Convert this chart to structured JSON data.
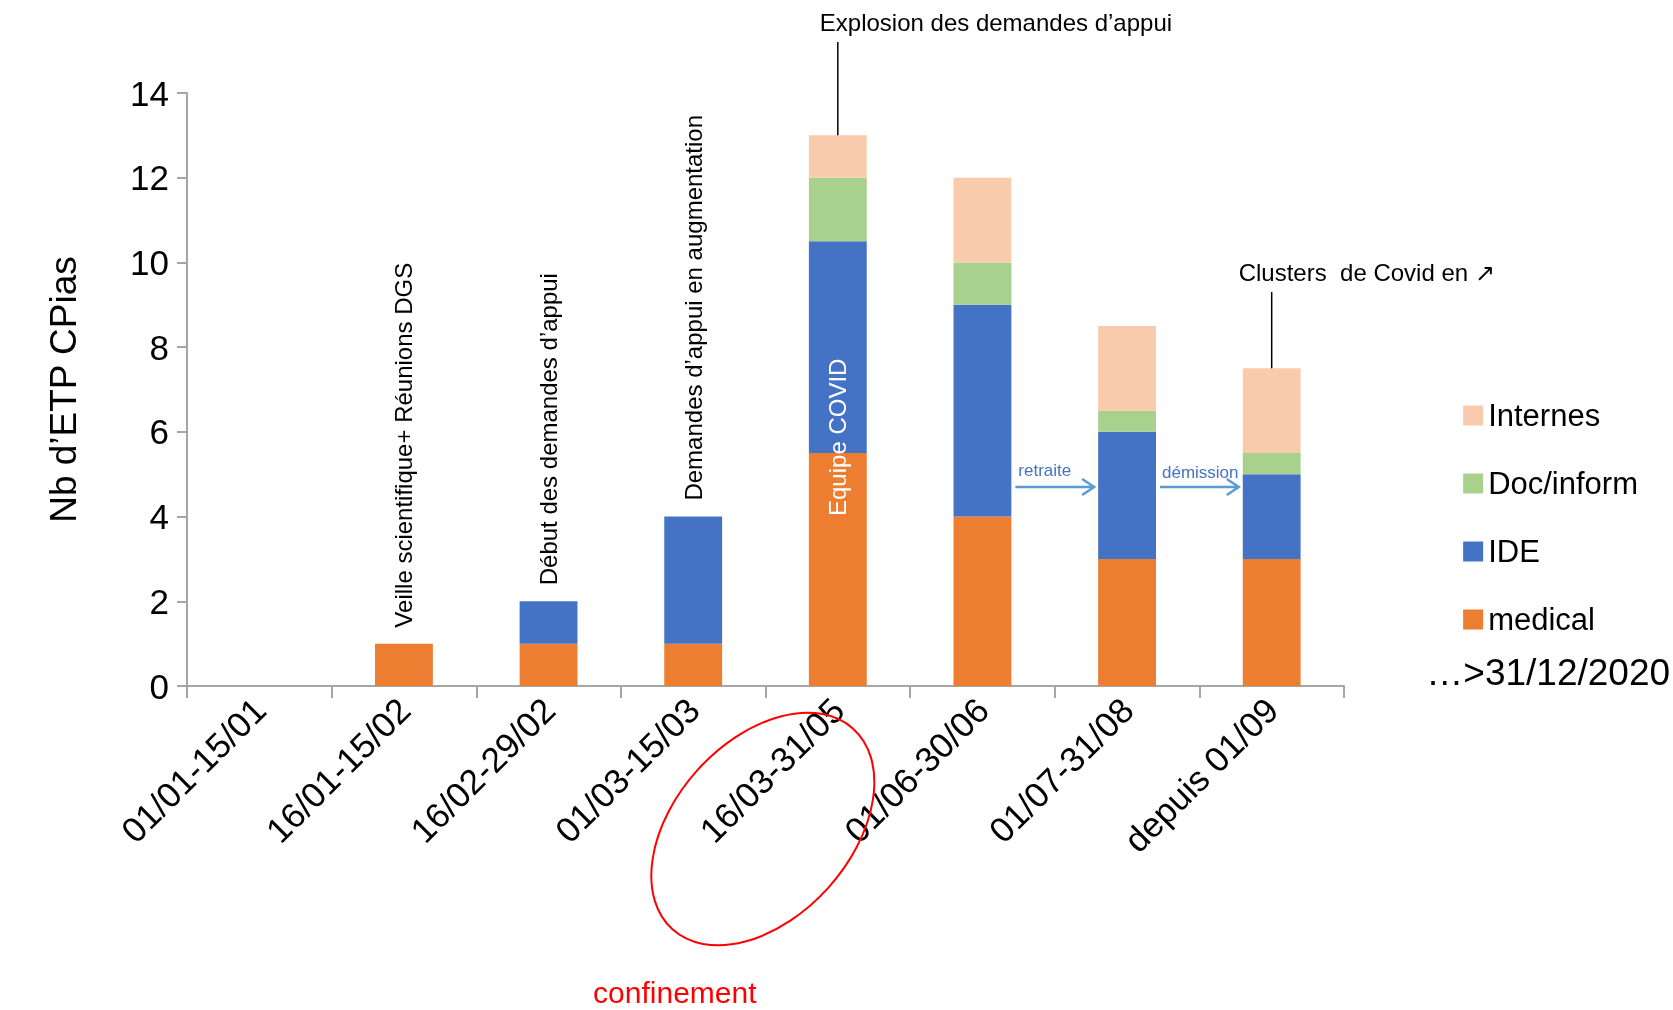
{
  "chart_data": {
    "type": "bar",
    "stacked": true,
    "ylabel": "Nb d’ETP CPias",
    "categories": [
      "01/01-15/01",
      "16/01-15/02",
      "16/02-29/02",
      "01/03-15/03",
      "16/03-31/05",
      "01/06-30/06",
      "01/07-31/08",
      "depuis 01/09"
    ],
    "series": [
      {
        "name": "medical",
        "color": "#ed7d31",
        "values": [
          0,
          1,
          1,
          1,
          5.5,
          4,
          3,
          3
        ]
      },
      {
        "name": "IDE",
        "color": "#4472c4",
        "values": [
          0,
          0,
          1,
          3,
          5,
          5,
          3,
          2
        ]
      },
      {
        "name": "Doc/inform",
        "color": "#a9d18e",
        "values": [
          0,
          0,
          0,
          0,
          1.5,
          1,
          0.5,
          0.5
        ]
      },
      {
        "name": "Internes",
        "color": "#f8cbad",
        "values": [
          0,
          0,
          0,
          0,
          1,
          2,
          2,
          2
        ]
      }
    ],
    "ylim": [
      0,
      14
    ],
    "yticks": [
      0,
      2,
      4,
      6,
      8,
      10,
      12,
      14
    ],
    "grid": false,
    "legend": "right",
    "annotations": [
      {
        "text": "Veille scientifique+ Réunions DGS",
        "x": "16/01-15/02",
        "y": 1
      },
      {
        "text": "Début des demandes d’appui",
        "x": "16/02-29/02",
        "y": 2
      },
      {
        "text": "Demandes d’appui en augmentation",
        "x": "01/03-15/03",
        "y": 4
      },
      {
        "text": "Explosion des demandes d’appui",
        "x": "16/03-31/05",
        "y": 13
      },
      "Equipe COVID",
      {
        "text": "Clusters  de Covid en ↗",
        "x": "depuis 01/09",
        "y": 7.5
      },
      "retraite",
      "démission",
      "confinement",
      "…>31/12/2020"
    ]
  }
}
